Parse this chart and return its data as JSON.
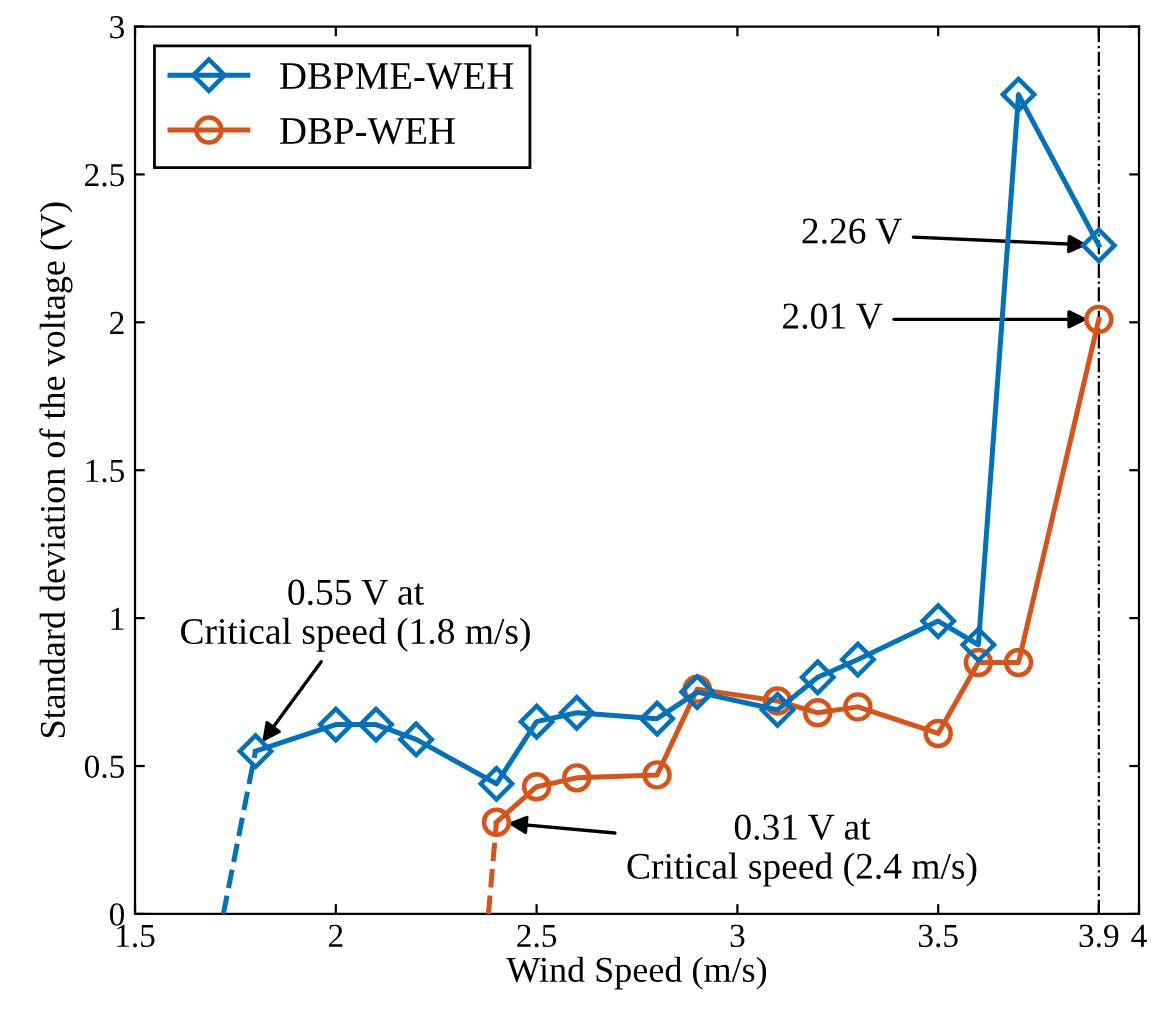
{
  "chart_data": {
    "type": "line",
    "xlabel": "Wind Speed (m/s)",
    "ylabel": "Standard deviation of the voltage (V)",
    "xlim": [
      1.5,
      4
    ],
    "xticks": [
      1.5,
      2,
      2.5,
      3,
      3.5,
      3.9,
      4
    ],
    "ylim": [
      0,
      3
    ],
    "yticks": [
      0,
      0.5,
      1,
      1.5,
      2,
      2.5,
      3
    ],
    "grid": false,
    "legend": "top left",
    "series": [
      {
        "name": "DBPME-WEH",
        "color": "#0072bd",
        "marker": "diamond",
        "line_style": "solid",
        "x": [
          1.8,
          2.0,
          2.1,
          2.2,
          2.4,
          2.5,
          2.6,
          2.8,
          2.9,
          3.1,
          3.2,
          3.3,
          3.5,
          3.6,
          3.7,
          3.9
        ],
        "values": [
          0.55,
          0.64,
          0.64,
          0.59,
          0.44,
          0.65,
          0.68,
          0.66,
          0.75,
          0.69,
          0.8,
          0.86,
          0.99,
          0.91,
          2.77,
          2.26
        ]
      },
      {
        "name": "DBP-WEH",
        "color": "#d95319",
        "marker": "circle",
        "line_style": "solid",
        "x": [
          2.4,
          2.5,
          2.6,
          2.8,
          2.9,
          3.1,
          3.2,
          3.3,
          3.5,
          3.6,
          3.7,
          3.9
        ],
        "values": [
          0.31,
          0.43,
          0.46,
          0.47,
          0.76,
          0.72,
          0.68,
          0.7,
          0.61,
          0.85,
          0.85,
          2.01
        ]
      },
      {
        "color": "#0072bd",
        "marker": "none",
        "line_style": "dashed",
        "x": [
          1.72,
          1.8
        ],
        "values": [
          0,
          0.55
        ]
      },
      {
        "color": "#d95319",
        "marker": "none",
        "line_style": "dashed",
        "x": [
          2.38,
          2.4
        ],
        "values": [
          0,
          0.31
        ]
      }
    ],
    "ref_lines": [
      {
        "axis": "x",
        "value": 3.9,
        "color": "#000000",
        "line_style": "dashdot"
      }
    ],
    "annotations": [
      {
        "text": "2.26 V",
        "x": 3.9,
        "y": 2.26
      },
      {
        "text": "2.01 V",
        "x": 3.9,
        "y": 2.01
      },
      {
        "text": "0.55 V at\nCritical speed (1.8 m/s)",
        "x": 1.8,
        "y": 0.55
      },
      {
        "text": "0.31 V at\nCritical speed (2.4 m/s)",
        "x": 2.4,
        "y": 0.31
      }
    ]
  }
}
